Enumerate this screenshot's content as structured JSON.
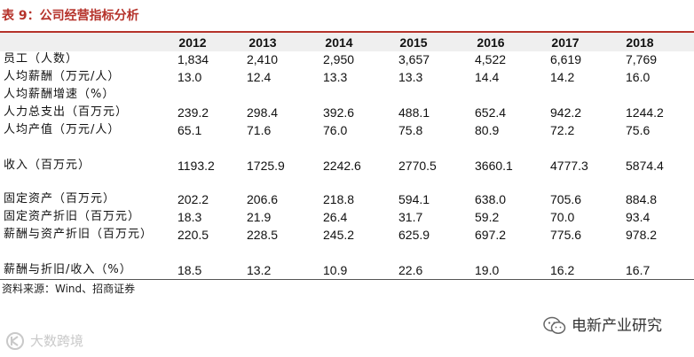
{
  "title": "表 9：公司经营指标分析",
  "years": [
    "2012",
    "2013",
    "2014",
    "2015",
    "2016",
    "2017",
    "2018"
  ],
  "rows": [
    {
      "label": "员工（人数）",
      "values": [
        "1,834",
        "2,410",
        "2,950",
        "3,657",
        "4,522",
        "6,619",
        "7,769"
      ]
    },
    {
      "label": "人均薪酬（万元/人）",
      "values": [
        "13.0",
        "12.4",
        "13.3",
        "13.3",
        "14.4",
        "14.2",
        "16.0"
      ]
    },
    {
      "label": "人均薪酬增速（%）",
      "values": [
        "",
        "",
        "",
        "",
        "",
        "",
        ""
      ]
    },
    {
      "label": "人力总支出（百万元）",
      "values": [
        "239.2",
        "298.4",
        "392.6",
        "488.1",
        "652.4",
        "942.2",
        "1244.2"
      ]
    },
    {
      "label": "人均产值（万元/人）",
      "values": [
        "65.1",
        "71.6",
        "76.0",
        "75.8",
        "80.9",
        "72.2",
        "75.6"
      ]
    },
    {
      "label": "收入（百万元）",
      "values": [
        "1193.2",
        "1725.9",
        "2242.6",
        "2770.5",
        "3660.1",
        "4777.3",
        "5874.4"
      ]
    },
    {
      "label": "固定资产（百万元）",
      "values": [
        "202.2",
        "206.6",
        "218.8",
        "594.1",
        "638.0",
        "705.6",
        "884.8"
      ]
    },
    {
      "label": "固定资产折旧（百万元）",
      "values": [
        "18.3",
        "21.9",
        "26.4",
        "31.7",
        "59.2",
        "70.0",
        "93.4"
      ]
    },
    {
      "label": "薪酬与资产折旧（百万元）",
      "values": [
        "220.5",
        "228.5",
        "245.2",
        "625.9",
        "697.2",
        "775.6",
        "978.2"
      ]
    },
    {
      "label": "薪酬与折旧/收入（%）",
      "values": [
        "18.5",
        "13.2",
        "10.9",
        "22.6",
        "19.0",
        "16.2",
        "16.7"
      ]
    }
  ],
  "source": "资料来源：Wind、招商证券",
  "watermark_right": "电新产业研究",
  "watermark_left": "大数跨境",
  "icons": {
    "wechat": "wechat-icon",
    "brand": "brand-logo-icon"
  },
  "colors": {
    "title": "#b5322a",
    "rule": "#b5322a",
    "header_bg": "#efefef"
  }
}
